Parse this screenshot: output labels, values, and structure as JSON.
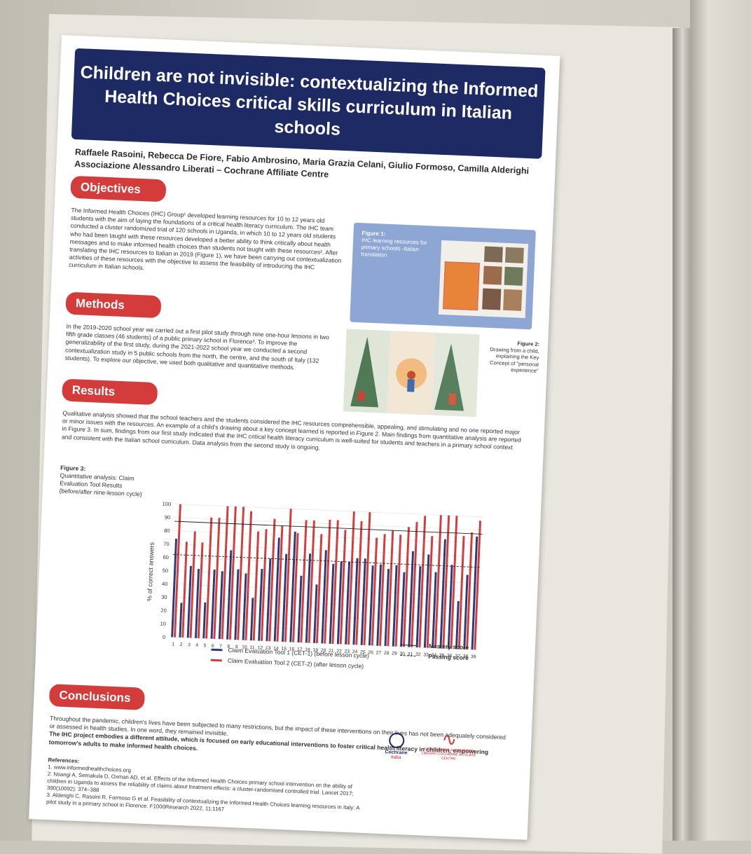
{
  "poster": {
    "title": "Children are not invisible: contextualizing the Informed Health Choices critical skills curriculum in Italian schools",
    "authors": "Raffaele Rasoini, Rebecca De Fiore, Fabio Ambrosino, Maria Grazia Celani, Giulio Formoso, Camilla Alderighi",
    "affiliation": "Associazione Alessandro Liberati – Cochrane Affiliate Centre",
    "sections": {
      "objectives": "Objectives",
      "methods": "Methods",
      "results": "Results",
      "conclusions": "Conclusions"
    },
    "objectives_text": "The Informed Health Choices (IHC) Group¹ developed learning resources for 10 to 12 years old students with the aim of laying the foundations of a critical health literacy curriculum. The IHC team conducted a cluster randomized trial of 120 schools in Uganda, in which 10 to 12 years old students who had been taught with these resources developed a better ability to think critically about health messages and to make informed health choices than students not taught with these resources². After translating the IHC resources to Italian in 2019 (Figure 1), we have been carrying out contextualization activities of these resources with the objective to assess the feasibility of introducing the IHC curriculum in Italian schools.",
    "methods_text": "In the 2019-2020 school year we carried out a first pilot study through nine one-hour lessons in two fifth grade classes (46 students) of a public primary school in Florence³. To improve the generalizability of the first study, during the 2021-2022 school year we conducted a second contextualization study in 5 public schools from the north, the centre, and the south of Italy (132 students). To explore our objective, we used both qualitative and quantitative methods.",
    "results_text": "Qualitative analysis showed that the school teachers and the students considered the IHC resources comprehensible, appealing, and stimulating and no one reported major or minor issues with the resources. An example of a child's drawing about a key concept learned is reported in Figure 2. Main findings from quantitative analysis are reported in Figure 3. In sum, findings from our first study indicated that the IHC critical health literacy curriculum is well-suited for students and teachers in a primary school context and consistent with the Italian school curriculum. Data analysis from the second study is ongoing.",
    "fig1_label": "Figure 1:",
    "fig1_caption": "IHC learning resources for primary schools -Italian translation",
    "fig2_label": "Figure 2:",
    "fig2_caption": "Drawing from a child, explaining the Key Concept of \"personal experience\"",
    "fig3_label": "Figure 3:",
    "fig3_caption": "Quantitative analysis: Claim Evaluation Tool Results (before/after nine-lesson cycle)",
    "conclusions_text": "Throughout the pandemic, children's lives have been subjected to many restrictions, but the impact of these interventions on their lives has not been adequately considered or assessed in health studies. In one word, they remained invisible.",
    "conclusions_bold": "The IHC project embodies a different attitude, which is focused on early educational interventions to foster critical health literacy in children, empowering tomorrow's adults to make informed health choices.",
    "references_title": "References:",
    "references": [
      "1. www.informedhealthchoices.org",
      "2. Nsangi A, Semakula D, Oxman AD, et al. Effects of the Informed Health Choices primary school intervention on the ability of children in Uganda to assess the reliability of claims about treatment effects: a cluster-randomised controlled trial. Lancet 2017; 390(10092): 374–388",
      "3. Alderighi C, Rasoini R, Formoso G et al. Feasibility of contextualizing the Informed Health Choices learning resources in Italy: A pilot study in a primary school in Florence. F1000Research 2022, 11:1167"
    ],
    "logo_cochrane": "Cochrane",
    "logo_cochrane_sub": "Italia",
    "logo_liberati": "ASSOCIAZIONE ALESSANDRO LIBERATI COCHRANE AFFILIATE CENTRE",
    "colors": {
      "navy": "#1e2a63",
      "red": "#d43c3c"
    }
  },
  "chart_data": {
    "type": "bar",
    "ylabel": "% of correct answers",
    "xlabel": "",
    "ylim": [
      0,
      100
    ],
    "yticks": [
      0,
      10,
      20,
      30,
      40,
      50,
      60,
      70,
      80,
      90,
      100
    ],
    "categories": [
      "1",
      "2",
      "3",
      "4",
      "5",
      "6",
      "7",
      "8",
      "9",
      "10",
      "11",
      "12",
      "13",
      "14",
      "15",
      "16",
      "17",
      "18",
      "19",
      "20",
      "21",
      "22",
      "23",
      "24",
      "25",
      "26",
      "27",
      "28",
      "29",
      "30",
      "31",
      "32",
      "33",
      "34",
      "35",
      "36",
      "37",
      "38",
      "39"
    ],
    "series": [
      {
        "name": "Claim Evaluation Tool 1 (CET-1) (before lesson cycle)",
        "color": "#2d3a7a",
        "values": [
          74,
          26,
          54,
          52,
          27,
          52,
          51,
          67,
          53,
          50,
          32,
          54,
          62,
          78,
          66,
          83,
          50,
          67,
          44,
          70,
          60,
          62,
          62,
          65,
          65,
          60,
          61,
          58,
          61,
          56,
          72,
          61,
          70,
          57,
          82,
          63,
          36,
          56,
          85
        ]
      },
      {
        "name": "Claim Evaluation Tool 2 (CET-2) (after lesson cycle)",
        "color": "#d43c3c",
        "values": [
          100,
          72,
          80,
          72,
          91,
          91,
          100,
          100,
          100,
          97,
          82,
          84,
          92,
          87,
          100,
          82,
          92,
          92,
          82,
          93,
          93,
          86,
          100,
          93,
          100,
          81,
          84,
          87,
          84,
          90,
          94,
          99,
          84,
          100,
          100,
          100,
          85,
          88,
          97
        ]
      }
    ],
    "reference_lines": [
      {
        "name": "Mastery score",
        "value": 87,
        "style": "solid"
      },
      {
        "name": "Passing score",
        "value": 62,
        "style": "dashed"
      }
    ],
    "legend_position": "bottom"
  }
}
